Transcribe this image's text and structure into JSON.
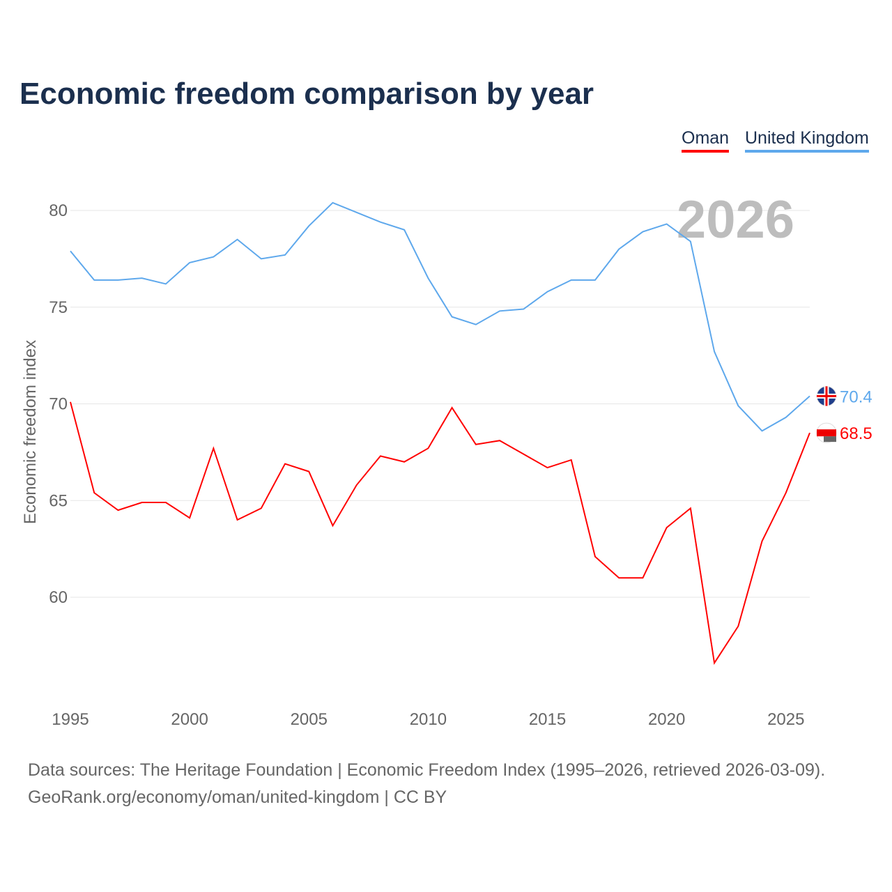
{
  "title": "Economic freedom comparison by year",
  "legend": {
    "oman": "Oman",
    "uk": "United Kingdom"
  },
  "footer": {
    "line1": "Data sources: The Heritage Foundation | Economic Freedom Index (1995–2026, retrieved 2026-03-09).",
    "line2": "GeoRank.org/economy/oman/united-kingdom | CC BY"
  },
  "chart_data": {
    "type": "line",
    "title": "Economic freedom comparison by year",
    "ylabel": "Economic freedom index",
    "xlabel": "",
    "year_label": "2026",
    "ylim": [
      53,
      82.5
    ],
    "xlim": [
      1995,
      2026
    ],
    "yticks": [
      60,
      65,
      70,
      75,
      80
    ],
    "xticks": [
      1995,
      2000,
      2005,
      2010,
      2015,
      2020,
      2025
    ],
    "x": [
      1995,
      1996,
      1997,
      1998,
      1999,
      2000,
      2001,
      2002,
      2003,
      2004,
      2005,
      2006,
      2007,
      2008,
      2009,
      2010,
      2011,
      2012,
      2013,
      2014,
      2015,
      2016,
      2017,
      2018,
      2019,
      2020,
      2021,
      2022,
      2023,
      2024,
      2025,
      2026
    ],
    "series": [
      {
        "name": "United Kingdom",
        "color": "#5ea8ec",
        "end_label": "70.4",
        "values": [
          77.9,
          76.4,
          76.4,
          76.5,
          76.2,
          77.3,
          77.6,
          78.5,
          77.5,
          77.7,
          79.2,
          80.4,
          79.9,
          79.4,
          79.0,
          76.5,
          74.5,
          74.1,
          74.8,
          74.9,
          75.8,
          76.4,
          76.4,
          78.0,
          78.9,
          79.3,
          78.4,
          72.7,
          69.9,
          68.6,
          69.3,
          70.4
        ]
      },
      {
        "name": "Oman",
        "color": "#ff0000",
        "end_label": "68.5",
        "values": [
          70.1,
          65.4,
          64.5,
          64.9,
          64.9,
          64.1,
          67.7,
          64.0,
          64.6,
          66.9,
          66.5,
          63.7,
          65.8,
          67.3,
          67.0,
          67.7,
          69.8,
          67.9,
          68.1,
          67.4,
          66.7,
          67.1,
          62.1,
          61.0,
          61.0,
          63.6,
          64.6,
          56.6,
          58.5,
          62.9,
          65.4,
          68.5
        ]
      }
    ],
    "grid": true,
    "legend_position": "top-right"
  }
}
